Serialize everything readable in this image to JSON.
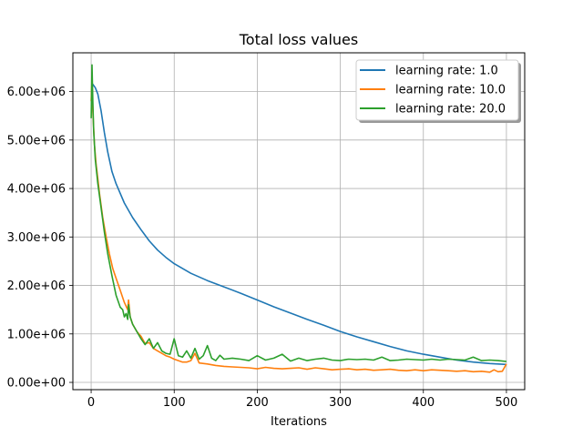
{
  "chart_data": {
    "type": "line",
    "title": "Total loss values",
    "xlabel": "Iterations",
    "ylabel": "",
    "xlim": [
      -22,
      522
    ],
    "ylim": [
      -150000,
      6800000
    ],
    "xticks": [
      0,
      100,
      200,
      300,
      400,
      500
    ],
    "xtick_labels": [
      "0",
      "100",
      "200",
      "300",
      "400",
      "500"
    ],
    "yticks": [
      0,
      1000000,
      2000000,
      3000000,
      4000000,
      5000000,
      6000000
    ],
    "ytick_labels": [
      "0.00e+00",
      "1.00e+06",
      "2.00e+06",
      "3.00e+06",
      "4.00e+06",
      "5.00e+06",
      "6.00e+06"
    ],
    "grid": true,
    "legend_position": "top-right",
    "series": [
      {
        "name": "learning rate: 1.0",
        "color": "#1f77b4",
        "x": [
          0,
          2,
          5,
          8,
          12,
          16,
          20,
          25,
          30,
          40,
          50,
          60,
          70,
          80,
          90,
          100,
          120,
          140,
          160,
          180,
          200,
          220,
          240,
          260,
          280,
          300,
          320,
          340,
          360,
          380,
          400,
          420,
          440,
          460,
          480,
          500
        ],
        "y": [
          6150000,
          6150000,
          6080000,
          5950000,
          5600000,
          5150000,
          4750000,
          4350000,
          4100000,
          3700000,
          3400000,
          3150000,
          2920000,
          2730000,
          2580000,
          2450000,
          2250000,
          2100000,
          1970000,
          1840000,
          1700000,
          1560000,
          1430000,
          1300000,
          1180000,
          1050000,
          940000,
          840000,
          740000,
          650000,
          580000,
          520000,
          460000,
          420000,
          390000,
          370000
        ]
      },
      {
        "name": "learning rate: 10.0",
        "color": "#ff7f0e",
        "x": [
          0,
          1,
          2,
          4,
          6,
          8,
          10,
          14,
          18,
          22,
          26,
          30,
          35,
          40,
          44,
          45,
          47,
          50,
          55,
          60,
          65,
          70,
          75,
          80,
          85,
          90,
          95,
          100,
          110,
          115,
          120,
          125,
          130,
          140,
          150,
          160,
          170,
          180,
          190,
          200,
          210,
          220,
          230,
          240,
          250,
          260,
          270,
          280,
          290,
          300,
          310,
          320,
          330,
          340,
          350,
          360,
          370,
          380,
          390,
          400,
          410,
          420,
          430,
          440,
          450,
          460,
          470,
          480,
          485,
          490,
          495,
          500
        ],
        "y": [
          5800000,
          6250000,
          5600000,
          4900000,
          4500000,
          4200000,
          3900000,
          3400000,
          3000000,
          2650000,
          2350000,
          2150000,
          1900000,
          1650000,
          1500000,
          1700000,
          1350000,
          1200000,
          1050000,
          950000,
          800000,
          820000,
          700000,
          650000,
          600000,
          550000,
          520000,
          480000,
          420000,
          420000,
          450000,
          600000,
          400000,
          380000,
          350000,
          330000,
          320000,
          310000,
          300000,
          280000,
          310000,
          290000,
          280000,
          290000,
          300000,
          270000,
          300000,
          280000,
          260000,
          270000,
          280000,
          260000,
          270000,
          250000,
          260000,
          270000,
          250000,
          240000,
          260000,
          240000,
          260000,
          250000,
          240000,
          230000,
          240000,
          220000,
          230000,
          210000,
          260000,
          220000,
          230000,
          380000
        ]
      },
      {
        "name": "learning rate: 20.0",
        "color": "#2ca02c",
        "x": [
          0,
          1,
          2,
          3,
          5,
          8,
          12,
          16,
          20,
          25,
          30,
          35,
          38,
          40,
          42,
          44,
          45,
          47,
          50,
          55,
          60,
          65,
          70,
          75,
          80,
          85,
          90,
          95,
          100,
          105,
          110,
          115,
          120,
          125,
          130,
          135,
          140,
          145,
          150,
          155,
          160,
          170,
          180,
          190,
          200,
          210,
          220,
          230,
          240,
          250,
          260,
          270,
          280,
          290,
          300,
          310,
          320,
          330,
          340,
          350,
          360,
          370,
          380,
          390,
          400,
          410,
          420,
          430,
          440,
          450,
          460,
          470,
          480,
          490,
          500
        ],
        "y": [
          5450000,
          6550000,
          5800000,
          5200000,
          4600000,
          4100000,
          3600000,
          3100000,
          2650000,
          2200000,
          1800000,
          1550000,
          1500000,
          1350000,
          1420000,
          1300000,
          1600000,
          1350000,
          1200000,
          1050000,
          900000,
          780000,
          900000,
          700000,
          820000,
          650000,
          600000,
          580000,
          900000,
          550000,
          520000,
          650000,
          500000,
          700000,
          480000,
          550000,
          760000,
          500000,
          450000,
          560000,
          480000,
          500000,
          480000,
          450000,
          550000,
          460000,
          500000,
          580000,
          440000,
          500000,
          450000,
          480000,
          500000,
          460000,
          450000,
          480000,
          470000,
          480000,
          460000,
          520000,
          450000,
          460000,
          480000,
          470000,
          460000,
          480000,
          460000,
          480000,
          470000,
          460000,
          520000,
          450000,
          460000,
          450000,
          430000
        ]
      }
    ]
  }
}
